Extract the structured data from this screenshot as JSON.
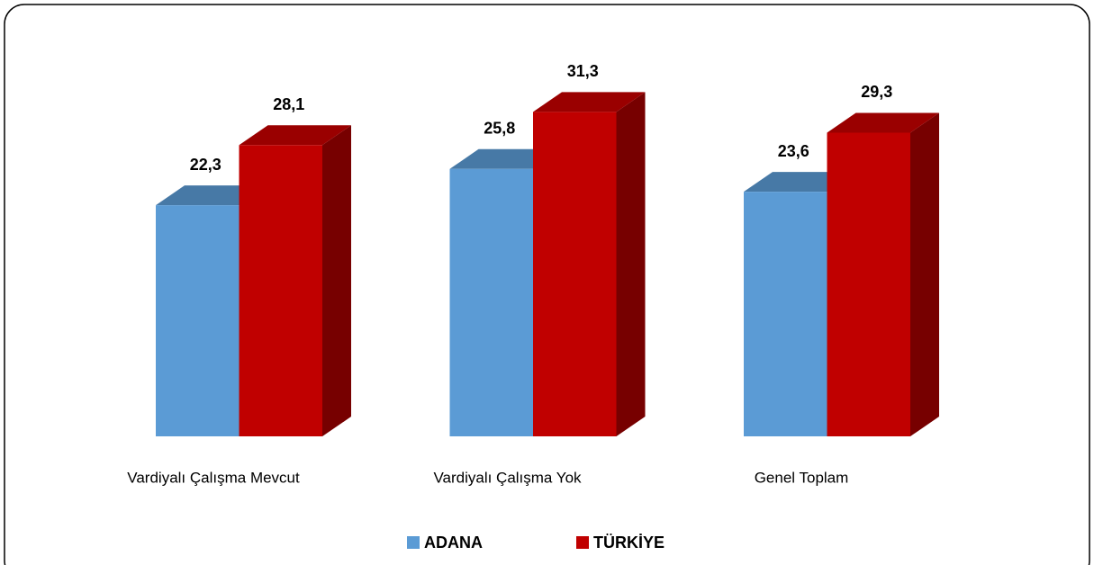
{
  "chart_data": {
    "type": "bar3d",
    "categories": [
      "Vardiyalı Çalışma Mevcut",
      "Vardiyalı Çalışma Yok",
      "Genel Toplam"
    ],
    "series": [
      {
        "name": "ADANA",
        "color": "#5b9bd5",
        "values": [
          22.3,
          25.8,
          23.6
        ],
        "value_labels": [
          "22,3",
          "25,8",
          "23,6"
        ]
      },
      {
        "name": "TÜRKİYE",
        "color": "#c00000",
        "values": [
          28.1,
          31.3,
          29.3
        ],
        "value_labels": [
          "28,1",
          "31,3",
          "29,3"
        ]
      }
    ],
    "legend": "bottom"
  }
}
